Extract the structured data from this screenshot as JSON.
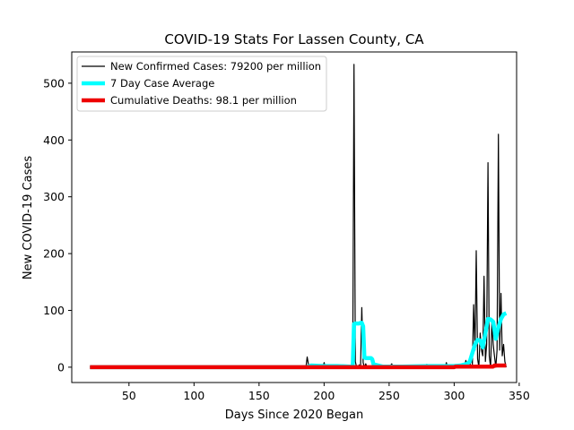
{
  "chart_data": {
    "type": "line",
    "title": "COVID-19 Stats For Lassen County, CA",
    "xlabel": "Days Since 2020 Began",
    "ylabel": "New COVID-19 Cases",
    "xlim": [
      6,
      348
    ],
    "ylim": [
      -27,
      555
    ],
    "xticks": [
      50,
      100,
      150,
      200,
      250,
      300,
      350
    ],
    "yticks": [
      0,
      100,
      200,
      300,
      400,
      500
    ],
    "grid": false,
    "legend_position": "upper-left",
    "series": [
      {
        "name": "New Confirmed Cases: 79200 per million",
        "color": "#000000",
        "style": "thin",
        "x": [
          20,
          140,
          186,
          187,
          188,
          189,
          190,
          199,
          200,
          201,
          202,
          205,
          210,
          215,
          220,
          221,
          222,
          223,
          224,
          225,
          226,
          227,
          228,
          229,
          230,
          231,
          232,
          233,
          235,
          238,
          240,
          245,
          250,
          252,
          253,
          255,
          260,
          265,
          270,
          278,
          279,
          280,
          285,
          290,
          293,
          294,
          295,
          300,
          305,
          308,
          309,
          310,
          312,
          313,
          314,
          315,
          316,
          317,
          318,
          319,
          320,
          321,
          322,
          323,
          324,
          325,
          326,
          327,
          328,
          329,
          330,
          331,
          332,
          333,
          334,
          335,
          336,
          337,
          338,
          339,
          340
        ],
        "values": [
          0,
          0,
          0,
          18,
          4,
          0,
          0,
          0,
          8,
          0,
          0,
          0,
          0,
          0,
          0,
          0,
          2,
          533,
          10,
          0,
          0,
          4,
          0,
          105,
          8,
          0,
          6,
          0,
          0,
          0,
          0,
          0,
          0,
          6,
          0,
          0,
          0,
          0,
          0,
          0,
          5,
          0,
          0,
          0,
          0,
          8,
          0,
          0,
          0,
          0,
          12,
          0,
          0,
          20,
          5,
          110,
          30,
          205,
          15,
          0,
          60,
          30,
          20,
          160,
          10,
          40,
          360,
          20,
          0,
          80,
          40,
          20,
          0,
          30,
          410,
          30,
          130,
          20,
          40,
          10,
          0
        ]
      },
      {
        "name": "7 Day Case Average",
        "color": "#00ffff",
        "style": "thick",
        "x": [
          20,
          186,
          190,
          200,
          210,
          220,
          221,
          222,
          223,
          224,
          225,
          226,
          227,
          228,
          229,
          230,
          231,
          232,
          233,
          234,
          235,
          236,
          237,
          238,
          245,
          260,
          280,
          300,
          305,
          310,
          312,
          314,
          316,
          318,
          320,
          322,
          324,
          326,
          328,
          330,
          332,
          334,
          336,
          338,
          340
        ],
        "values": [
          0,
          0,
          3,
          2,
          2,
          1,
          1,
          1,
          76,
          77,
          77,
          77,
          77,
          78,
          78,
          72,
          17,
          16,
          16,
          16,
          16,
          16,
          14,
          5,
          1,
          1,
          2,
          2,
          3,
          6,
          10,
          25,
          40,
          48,
          47,
          35,
          60,
          85,
          84,
          80,
          50,
          70,
          85,
          93,
          95
        ]
      },
      {
        "name": "Cumulative Deaths: 98.1 per million",
        "color": "#ee0000",
        "style": "thick",
        "x": [
          20,
          300,
          301,
          330,
          331,
          340
        ],
        "values": [
          0,
          0,
          1,
          1,
          3,
          3
        ]
      }
    ]
  }
}
